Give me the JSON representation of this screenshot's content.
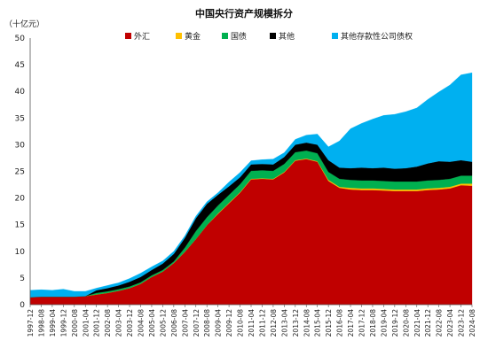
{
  "chart_data": {
    "type": "area",
    "stacked": true,
    "title": "中国央行资产规模拆分",
    "unit_label": "（十亿元）",
    "ylim": [
      0,
      50
    ],
    "yticks": [
      0,
      5,
      10,
      15,
      20,
      25,
      30,
      35,
      40,
      45,
      50
    ],
    "grid": false,
    "legend_position": "top",
    "xticks": [
      "1997-12",
      "1998-08",
      "1999-04",
      "1999-12",
      "2000-08",
      "2001-04",
      "2001-12",
      "2002-08",
      "2003-04",
      "2003-12",
      "2004-08",
      "2005-04",
      "2005-12",
      "2006-08",
      "2007-04",
      "2007-12",
      "2008-08",
      "2009-04",
      "2009-12",
      "2010-08",
      "2011-04",
      "2011-12",
      "2012-08",
      "2013-04",
      "2013-12",
      "2014-08",
      "2015-04",
      "2015-12",
      "2016-08",
      "2017-04",
      "2017-12",
      "2018-08",
      "2019-04",
      "2019-12",
      "2020-08",
      "2021-04",
      "2021-12",
      "2022-08",
      "2023-04",
      "2023-12",
      "2024-08"
    ],
    "series": [
      {
        "name": "外汇",
        "color": "#c00000",
        "values": [
          1.4,
          1.5,
          1.5,
          1.5,
          1.5,
          1.6,
          1.9,
          2.2,
          2.6,
          3.1,
          3.9,
          5.2,
          6.2,
          7.8,
          9.9,
          12.3,
          14.9,
          17.0,
          19.0,
          21.0,
          23.5,
          23.6,
          23.5,
          24.8,
          27.0,
          27.3,
          26.8,
          23.2,
          21.9,
          21.6,
          21.5,
          21.5,
          21.4,
          21.3,
          21.3,
          21.3,
          21.5,
          21.6,
          21.8,
          22.4,
          22.3
        ]
      },
      {
        "name": "黄金",
        "color": "#ffc000",
        "values": [
          0.0,
          0.0,
          0.0,
          0.0,
          0.0,
          0.0,
          0.0,
          0.0,
          0.0,
          0.0,
          0.0,
          0.0,
          0.0,
          0.0,
          0.0,
          0.0,
          0.0,
          0.1,
          0.1,
          0.1,
          0.1,
          0.1,
          0.1,
          0.1,
          0.1,
          0.1,
          0.1,
          0.2,
          0.2,
          0.3,
          0.3,
          0.3,
          0.3,
          0.3,
          0.3,
          0.3,
          0.3,
          0.3,
          0.3,
          0.3,
          0.4
        ]
      },
      {
        "name": "国债",
        "color": "#00b050",
        "values": [
          0.0,
          0.0,
          0.0,
          0.0,
          0.0,
          0.0,
          0.3,
          0.3,
          0.3,
          0.3,
          0.3,
          0.3,
          0.3,
          0.3,
          0.8,
          1.5,
          1.5,
          1.5,
          1.5,
          1.5,
          1.5,
          1.5,
          1.5,
          1.5,
          1.5,
          1.5,
          1.5,
          1.5,
          1.5,
          1.5,
          1.5,
          1.5,
          1.5,
          1.5,
          1.5,
          1.5,
          1.5,
          1.5,
          1.5,
          1.5,
          1.5
        ]
      },
      {
        "name": "其他",
        "color": "#000000",
        "values": [
          0.0,
          0.0,
          0.0,
          0.0,
          0.0,
          0.0,
          0.5,
          0.6,
          0.7,
          0.9,
          1.0,
          1.0,
          1.2,
          1.4,
          1.8,
          2.4,
          2.5,
          2.0,
          1.6,
          1.3,
          1.2,
          1.2,
          1.2,
          1.3,
          1.4,
          1.5,
          1.6,
          2.2,
          2.1,
          2.2,
          2.4,
          2.3,
          2.5,
          2.4,
          2.5,
          2.8,
          3.2,
          3.5,
          3.2,
          2.9,
          2.6
        ]
      },
      {
        "name": "其他存款性公司债权",
        "color": "#00b0f0",
        "values": [
          1.3,
          1.3,
          1.2,
          1.4,
          1.0,
          0.9,
          0.4,
          0.5,
          0.5,
          0.6,
          0.7,
          0.6,
          0.5,
          0.5,
          0.4,
          0.4,
          0.4,
          0.4,
          0.8,
          0.9,
          0.7,
          0.8,
          1.0,
          0.8,
          1.0,
          1.4,
          2.0,
          2.5,
          5.0,
          7.4,
          8.3,
          9.2,
          9.8,
          10.2,
          10.6,
          11.0,
          12.0,
          13.0,
          14.4,
          16.0,
          16.7
        ]
      }
    ]
  }
}
